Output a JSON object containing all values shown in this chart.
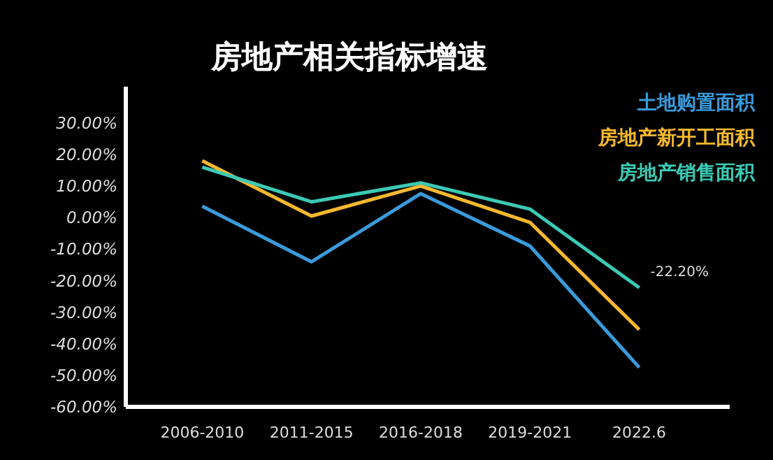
{
  "chart_data": {
    "type": "line",
    "title": "房地产相关指标增速",
    "categories": [
      "2006-2010",
      "2011-2015",
      "2016-2018",
      "2019-2021",
      "2022.6"
    ],
    "series": [
      {
        "name": "土地购置面积",
        "color": "#3a9ad9",
        "values": [
          3.6,
          -14,
          7.6,
          -9,
          -47.5
        ]
      },
      {
        "name": "房地产新开工面积",
        "color": "#f5b82e",
        "values": [
          18,
          0.5,
          10,
          -1.5,
          -35.5
        ]
      },
      {
        "name": "房地产销售面积",
        "color": "#3cc9b4",
        "values": [
          16,
          5,
          11,
          2.7,
          -22.2
        ]
      }
    ],
    "ylim": [
      -60,
      41.5
    ],
    "yticks": [
      {
        "value": 30,
        "label": "30.00%"
      },
      {
        "value": 20,
        "label": "20.00%"
      },
      {
        "value": 10,
        "label": "10.00%"
      },
      {
        "value": 0,
        "label": "0.00%"
      },
      {
        "value": -10,
        "label": "-10.00%"
      },
      {
        "value": -20,
        "label": "-20.00%"
      },
      {
        "value": -30,
        "label": "-30.00%"
      },
      {
        "value": -40,
        "label": "-40.00%"
      },
      {
        "value": -50,
        "label": "-50.00%"
      },
      {
        "value": -60,
        "label": "-60.00%"
      }
    ],
    "grid": false,
    "legend": "top right",
    "marker": "none",
    "line_style": "solid",
    "annotations": [
      {
        "text": "-22.20%",
        "x": "2022.6",
        "y": -22.2
      }
    ]
  }
}
